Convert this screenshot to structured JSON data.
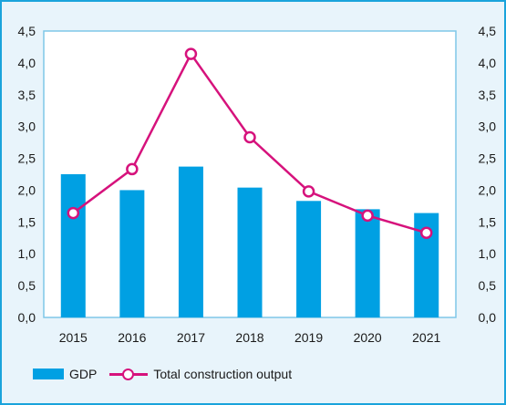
{
  "chart_data": {
    "type": "bar",
    "categories": [
      "2015",
      "2016",
      "2017",
      "2018",
      "2019",
      "2020",
      "2021"
    ],
    "series": [
      {
        "name": "GDP",
        "type": "bar",
        "color": "#00a0e3",
        "values": [
          2.25,
          2.0,
          2.37,
          2.04,
          1.83,
          1.7,
          1.64
        ]
      },
      {
        "name": "Total construction output",
        "type": "line",
        "color": "#d6127c",
        "values": [
          1.64,
          2.33,
          4.14,
          2.83,
          1.98,
          1.6,
          1.33
        ]
      }
    ],
    "ylim": [
      0,
      4.5
    ],
    "yticks": [
      "0,0",
      "0,5",
      "1,0",
      "1,5",
      "2,0",
      "2,5",
      "3,0",
      "3,5",
      "4,0",
      "4,5"
    ],
    "ytick_values": [
      0,
      0.5,
      1.0,
      1.5,
      2.0,
      2.5,
      3.0,
      3.5,
      4.0,
      4.5
    ],
    "secondary_yticks": [
      "0,0",
      "0,5",
      "1,0",
      "1,5",
      "2,0",
      "2,5",
      "3,0",
      "3,5",
      "4,0",
      "4,5"
    ],
    "grid": false,
    "legend_position": "bottom-left",
    "plot_background": "#ffffff",
    "frame_color": "#1aa3dc",
    "outer_background": "#e8f4fb"
  }
}
